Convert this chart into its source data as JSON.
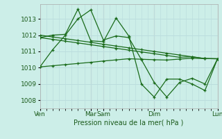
{
  "background_color": "#cceee8",
  "grid_color": "#bbdddd",
  "line_color": "#1a6b1a",
  "vline_color": "#cc9999",
  "xlabel": "Pression niveau de la mer( hPa )",
  "ylim": [
    1007.5,
    1013.9
  ],
  "yticks": [
    1008,
    1009,
    1010,
    1011,
    1012,
    1013
  ],
  "x_tick_labels": [
    "Ven",
    "Mar",
    "Sam",
    "Dim",
    "Lun"
  ],
  "x_tick_positions": [
    0.0,
    0.286,
    0.357,
    0.643,
    1.0
  ],
  "vlines_x": [
    0.286,
    0.357,
    0.643,
    1.0
  ],
  "series1_x": [
    0.0,
    0.071,
    0.143,
    0.214,
    0.286,
    0.357,
    0.429,
    0.5,
    0.571,
    0.643,
    0.714,
    0.786,
    0.857,
    0.929,
    1.0
  ],
  "series1_y": [
    1010.05,
    1011.1,
    1012.0,
    1013.0,
    1013.55,
    1011.7,
    1011.95,
    1011.85,
    1010.5,
    1009.1,
    1008.2,
    1009.1,
    1009.35,
    1009.0,
    1010.55
  ],
  "series2_x": [
    0.0,
    0.071,
    0.143,
    0.214,
    0.286,
    0.357,
    0.429,
    0.5,
    0.571,
    0.643,
    0.714,
    0.786,
    0.857,
    0.929,
    1.0
  ],
  "series2_y": [
    1011.85,
    1012.0,
    1012.05,
    1013.6,
    1011.65,
    1011.6,
    1013.05,
    1011.95,
    1009.0,
    1008.2,
    1009.3,
    1009.3,
    1009.0,
    1008.6,
    1010.55
  ],
  "series3_x": [
    0.0,
    0.071,
    0.143,
    0.214,
    0.286,
    0.357,
    0.429,
    0.5,
    0.571,
    0.643,
    0.714,
    0.786,
    0.857,
    0.929,
    1.0
  ],
  "series3_y": [
    1012.0,
    1011.89,
    1011.78,
    1011.67,
    1011.56,
    1011.44,
    1011.33,
    1011.22,
    1011.11,
    1011.0,
    1010.89,
    1010.78,
    1010.67,
    1010.56,
    1010.55
  ],
  "series4_x": [
    0.0,
    0.071,
    0.143,
    0.214,
    0.286,
    0.357,
    0.429,
    0.5,
    0.571,
    0.643,
    0.714,
    0.786,
    0.857,
    0.929,
    1.0
  ],
  "series4_y": [
    1011.85,
    1011.74,
    1011.63,
    1011.52,
    1011.41,
    1011.3,
    1011.19,
    1011.08,
    1010.97,
    1010.86,
    1010.75,
    1010.64,
    1010.67,
    1010.56,
    1010.55
  ],
  "series5_x": [
    0.0,
    0.071,
    0.143,
    0.214,
    0.286,
    0.357,
    0.429,
    0.5,
    0.571,
    0.643,
    0.714,
    0.786,
    0.857,
    0.929,
    1.0
  ],
  "series5_y": [
    1010.05,
    1010.12,
    1010.19,
    1010.26,
    1010.33,
    1010.41,
    1010.48,
    1010.55,
    1010.52,
    1010.49,
    1010.47,
    1010.53,
    1010.58,
    1010.56,
    1010.55
  ],
  "figsize": [
    3.2,
    2.0
  ],
  "dpi": 100
}
